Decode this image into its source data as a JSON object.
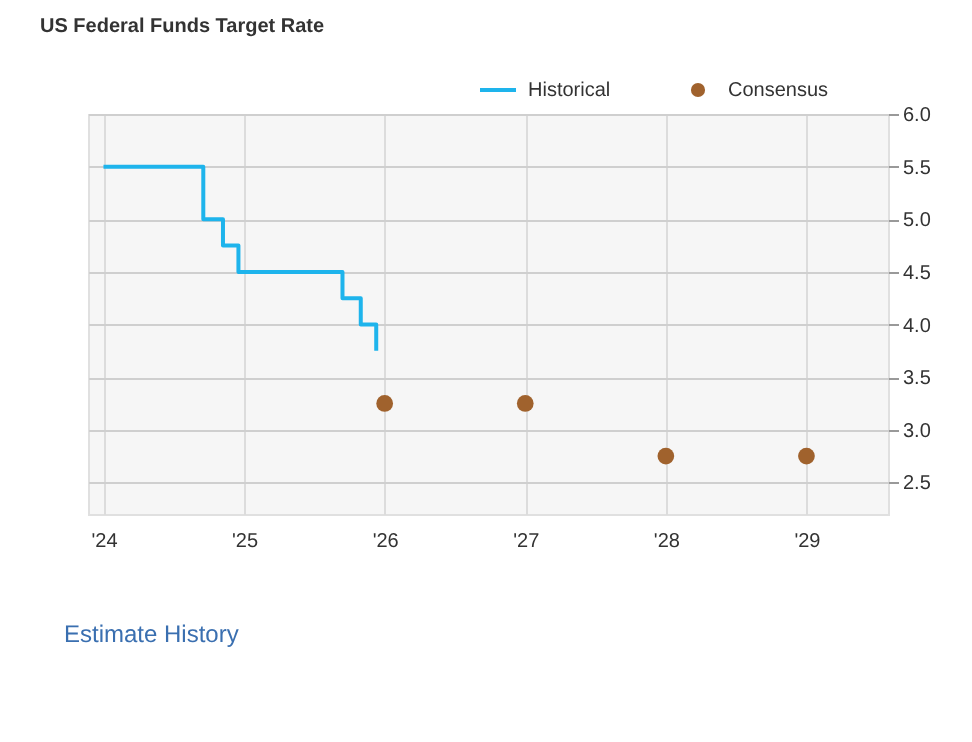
{
  "chart_data": {
    "type": "step",
    "title": "US Federal Funds Target Rate",
    "series": [
      {
        "name": "Historical",
        "color": "#1eb4ec",
        "x": [
          2024.0,
          2024.71,
          2024.85,
          2024.96,
          2025.7,
          2025.83,
          2025.94
        ],
        "values": [
          5.5,
          5.0,
          4.75,
          4.5,
          4.25,
          4.0,
          3.75
        ]
      },
      {
        "name": "Consensus",
        "type": "scatter",
        "color": "#a0622d",
        "marker": "circle",
        "x": [
          2026,
          2027,
          2028,
          2029
        ],
        "values": [
          3.25,
          3.25,
          2.75,
          2.75
        ]
      }
    ],
    "xlim": [
      2023.89,
      2029.58
    ],
    "xticks": [
      {
        "value": 2024,
        "label": "'24"
      },
      {
        "value": 2025,
        "label": "'25"
      },
      {
        "value": 2026,
        "label": "'26"
      },
      {
        "value": 2027,
        "label": "'27"
      },
      {
        "value": 2028,
        "label": "'28"
      },
      {
        "value": 2029,
        "label": "'29"
      }
    ],
    "ylim": [
      2.2,
      6.0
    ],
    "yticks": [
      2.5,
      {
        "value": 3,
        "label": "3.0"
      },
      3.5,
      {
        "value": 4,
        "label": "4.0"
      },
      4.5,
      {
        "value": 5,
        "label": "5.0"
      },
      5.5,
      {
        "value": 6,
        "label": "6.0"
      }
    ],
    "grid": true,
    "legend": "top right",
    "annotations": [
      "Estimate History"
    ]
  }
}
